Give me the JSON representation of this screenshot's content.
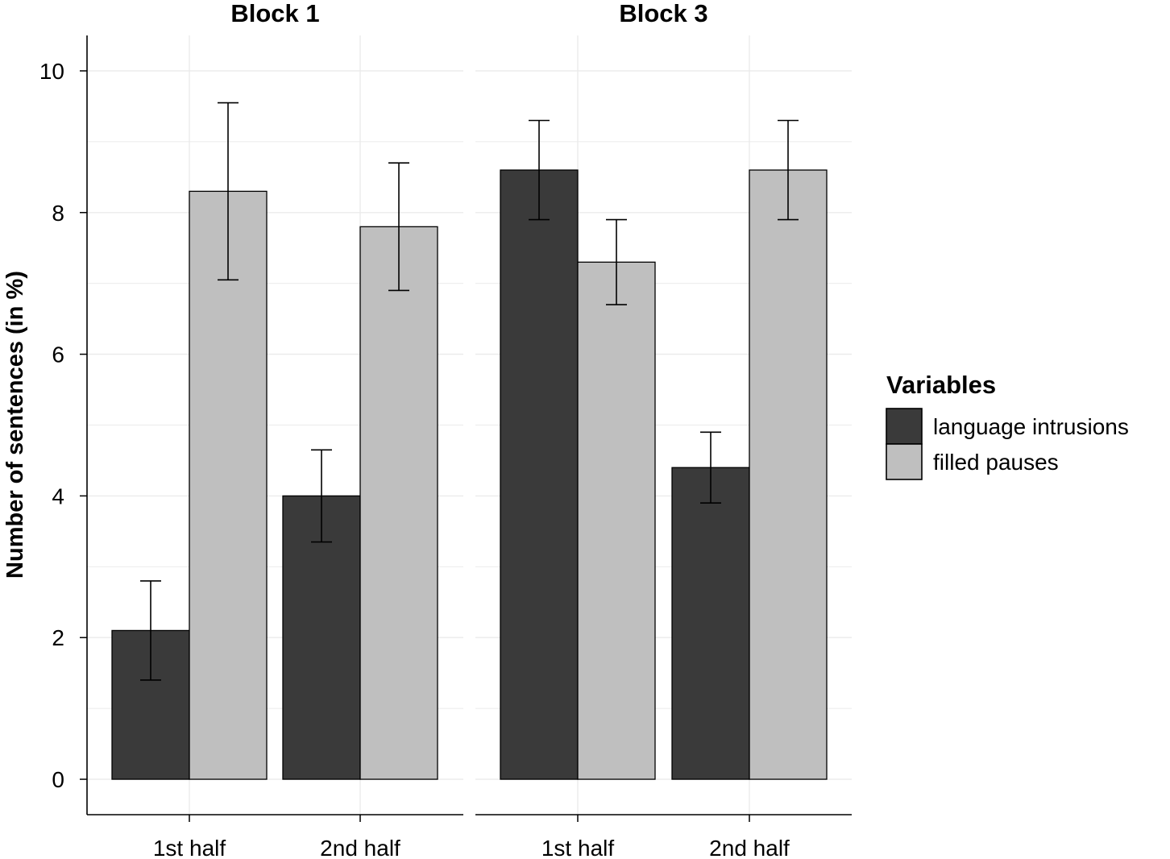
{
  "chart_data": {
    "type": "bar",
    "ylabel": "Number of sentences (in %)",
    "ylim": [
      -0.5,
      10.5
    ],
    "yticks": [
      0,
      2,
      4,
      6,
      8,
      10
    ],
    "grid": true,
    "legend": {
      "title": "Variables",
      "position": "right",
      "entries": [
        {
          "label": "language intrusions",
          "color": "#3a3a3a"
        },
        {
          "label": "filled pauses",
          "color": "#bfbfbf"
        }
      ]
    },
    "facets": [
      {
        "title": "Block 1",
        "categories": [
          "1st half",
          "2nd half"
        ],
        "series": [
          {
            "name": "language intrusions",
            "values": [
              2.1,
              4.0
            ],
            "err_low": [
              1.4,
              3.35
            ],
            "err_high": [
              2.8,
              4.65
            ]
          },
          {
            "name": "filled pauses",
            "values": [
              8.3,
              7.8
            ],
            "err_low": [
              7.05,
              6.9
            ],
            "err_high": [
              9.55,
              8.7
            ]
          }
        ]
      },
      {
        "title": "Block 3",
        "categories": [
          "1st half",
          "2nd half"
        ],
        "series": [
          {
            "name": "language intrusions",
            "values": [
              8.6,
              4.4
            ],
            "err_low": [
              7.9,
              3.9
            ],
            "err_high": [
              9.3,
              4.9
            ]
          },
          {
            "name": "filled pauses",
            "values": [
              7.3,
              8.6
            ],
            "err_low": [
              6.7,
              7.9
            ],
            "err_high": [
              7.9,
              9.3
            ]
          }
        ]
      }
    ]
  }
}
